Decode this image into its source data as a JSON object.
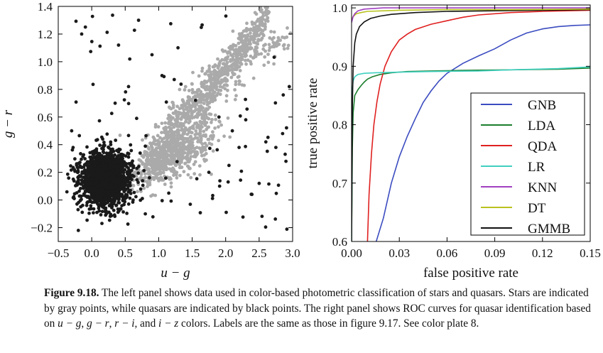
{
  "chart_data": [
    {
      "type": "scatter",
      "xlabel": "u − g",
      "ylabel": "g − r",
      "xlim": [
        -0.5,
        3.0
      ],
      "ylim": [
        -0.3,
        1.4
      ],
      "xticks": [
        "−0.5",
        "0.0",
        "0.5",
        "1.0",
        "1.5",
        "2.0",
        "2.5",
        "3.0"
      ],
      "yticks": [
        "−0.2",
        "0.0",
        "0.2",
        "0.4",
        "0.6",
        "0.8",
        "1.0",
        "1.2",
        "1.4"
      ],
      "series": [
        {
          "color": "#aaaaaa",
          "cluster": {
            "x_center": 1.25,
            "y_center": 0.3,
            "count": 1300
          },
          "trend": [
            [
              0.8,
              0.2
            ],
            [
              1.2,
              0.38
            ],
            [
              1.6,
              0.6
            ],
            [
              2.0,
              0.85
            ],
            [
              2.4,
              1.05
            ],
            [
              2.7,
              1.15
            ]
          ]
        },
        {
          "color": "#1a1a1a",
          "cluster": {
            "x_center": 0.2,
            "y_center": 0.15,
            "count": 1700
          },
          "outliers": [
            [
              -0.15,
              1.2
            ],
            [
              -0.3,
              0.5
            ],
            [
              0.4,
              1.12
            ],
            [
              0.7,
              1.3
            ],
            [
              0.9,
              1.05
            ],
            [
              0.55,
              0.82
            ],
            [
              0.35,
              0.7
            ],
            [
              1.05,
              0.9
            ],
            [
              2.1,
              0.5
            ],
            [
              2.3,
              0.58
            ],
            [
              2.6,
              0.42
            ],
            [
              2.75,
              0.38
            ],
            [
              2.9,
              0.28
            ],
            [
              2.05,
              0.25
            ],
            [
              2.5,
              0.12
            ],
            [
              1.9,
              0.6
            ],
            [
              2.95,
              0.82
            ],
            [
              2.85,
              0.48
            ],
            [
              1.55,
              0.72
            ],
            [
              0.8,
              -0.1
            ],
            [
              -0.2,
              -0.22
            ],
            [
              1.15,
              0.05
            ],
            [
              2.2,
              0.38
            ],
            [
              1.75,
              0.2
            ]
          ]
        }
      ]
    },
    {
      "type": "line",
      "xlabel": "false positive rate",
      "ylabel": "true positive rate",
      "xlim": [
        0.0,
        0.15
      ],
      "ylim": [
        0.6,
        1.005
      ],
      "xticks": [
        "0.00",
        "0.03",
        "0.06",
        "0.09",
        "0.12",
        "0.15"
      ],
      "yticks": [
        "0.6",
        "0.7",
        "0.8",
        "0.9",
        "1.0"
      ],
      "legend_position": "lower right",
      "series": [
        {
          "name": "GNB",
          "color": "#3b4cc0",
          "points": [
            [
              0.0155,
              0.6
            ],
            [
              0.02,
              0.64
            ],
            [
              0.025,
              0.7
            ],
            [
              0.03,
              0.745
            ],
            [
              0.035,
              0.78
            ],
            [
              0.04,
              0.81
            ],
            [
              0.045,
              0.838
            ],
            [
              0.05,
              0.858
            ],
            [
              0.055,
              0.875
            ],
            [
              0.06,
              0.888
            ],
            [
              0.07,
              0.905
            ],
            [
              0.08,
              0.918
            ],
            [
              0.09,
              0.93
            ],
            [
              0.1,
              0.945
            ],
            [
              0.11,
              0.957
            ],
            [
              0.12,
              0.964
            ],
            [
              0.13,
              0.968
            ],
            [
              0.14,
              0.97
            ],
            [
              0.15,
              0.971
            ]
          ]
        },
        {
          "name": "LDA",
          "color": "#1b7e2e",
          "points": [
            [
              0.0,
              0.6
            ],
            [
              0.0005,
              0.76
            ],
            [
              0.001,
              0.82
            ],
            [
              0.002,
              0.85
            ],
            [
              0.004,
              0.86
            ],
            [
              0.006,
              0.867
            ],
            [
              0.008,
              0.873
            ],
            [
              0.01,
              0.878
            ],
            [
              0.013,
              0.882
            ],
            [
              0.018,
              0.886
            ],
            [
              0.025,
              0.889
            ],
            [
              0.035,
              0.891
            ],
            [
              0.05,
              0.892
            ],
            [
              0.07,
              0.893
            ],
            [
              0.1,
              0.894
            ],
            [
              0.13,
              0.895
            ],
            [
              0.15,
              0.897
            ]
          ]
        },
        {
          "name": "QDA",
          "color": "#e02020",
          "points": [
            [
              0.01,
              0.6
            ],
            [
              0.011,
              0.68
            ],
            [
              0.0125,
              0.75
            ],
            [
              0.014,
              0.8
            ],
            [
              0.016,
              0.84
            ],
            [
              0.018,
              0.87
            ],
            [
              0.021,
              0.9
            ],
            [
              0.025,
              0.925
            ],
            [
              0.03,
              0.945
            ],
            [
              0.035,
              0.955
            ],
            [
              0.04,
              0.963
            ],
            [
              0.05,
              0.972
            ],
            [
              0.06,
              0.978
            ],
            [
              0.07,
              0.984
            ],
            [
              0.08,
              0.988
            ],
            [
              0.1,
              0.992
            ],
            [
              0.12,
              0.994
            ],
            [
              0.15,
              0.996
            ]
          ]
        },
        {
          "name": "LR",
          "color": "#40d0c0",
          "points": [
            [
              0.0,
              0.6
            ],
            [
              0.0005,
              0.86
            ],
            [
              0.001,
              0.875
            ],
            [
              0.002,
              0.882
            ],
            [
              0.004,
              0.886
            ],
            [
              0.008,
              0.888
            ],
            [
              0.015,
              0.889
            ],
            [
              0.03,
              0.89
            ],
            [
              0.05,
              0.891
            ],
            [
              0.08,
              0.892
            ],
            [
              0.1,
              0.894
            ],
            [
              0.13,
              0.896
            ],
            [
              0.15,
              0.899
            ]
          ]
        },
        {
          "name": "KNN",
          "color": "#a040c0",
          "points": [
            [
              0.0,
              0.975
            ],
            [
              0.0005,
              0.98
            ],
            [
              0.001,
              0.985
            ],
            [
              0.002,
              0.99
            ],
            [
              0.004,
              0.995
            ],
            [
              0.008,
              0.998
            ],
            [
              0.02,
              1.0
            ],
            [
              0.15,
              1.0
            ]
          ]
        },
        {
          "name": "DT",
          "color": "#b8c21e",
          "points": [
            [
              0.0,
              0.98
            ],
            [
              0.001,
              0.985
            ],
            [
              0.003,
              0.99
            ],
            [
              0.006,
              0.992
            ],
            [
              0.01,
              0.994
            ],
            [
              0.03,
              0.996
            ],
            [
              0.06,
              0.997
            ],
            [
              0.1,
              0.997
            ],
            [
              0.15,
              0.998
            ]
          ]
        },
        {
          "name": "GMMB",
          "color": "#111111",
          "points": [
            [
              0.0,
              0.6
            ],
            [
              0.0005,
              0.83
            ],
            [
              0.001,
              0.9
            ],
            [
              0.002,
              0.94
            ],
            [
              0.003,
              0.955
            ],
            [
              0.005,
              0.968
            ],
            [
              0.008,
              0.976
            ],
            [
              0.012,
              0.982
            ],
            [
              0.018,
              0.986
            ],
            [
              0.025,
              0.989
            ],
            [
              0.04,
              0.992
            ],
            [
              0.06,
              0.994
            ],
            [
              0.09,
              0.995
            ],
            [
              0.12,
              0.996
            ],
            [
              0.15,
              0.997
            ]
          ]
        }
      ]
    }
  ],
  "caption": {
    "label": "Figure 9.18.",
    "segments": [
      {
        "t": " The left panel shows data used in color-based photometric classification of stars and quasars. Stars are indicated by gray points, while quasars are indicated by black points. The right panel shows ROC curves for quasar identification based on ",
        "i": false
      },
      {
        "t": "u − g",
        "i": true
      },
      {
        "t": ", ",
        "i": false
      },
      {
        "t": "g − r",
        "i": true
      },
      {
        "t": ", ",
        "i": false
      },
      {
        "t": "r − i",
        "i": true
      },
      {
        "t": ", and ",
        "i": false
      },
      {
        "t": "i − z",
        "i": true
      },
      {
        "t": " colors. Labels are the same as those in figure 9.17.  See color plate 8.",
        "i": false
      }
    ]
  }
}
